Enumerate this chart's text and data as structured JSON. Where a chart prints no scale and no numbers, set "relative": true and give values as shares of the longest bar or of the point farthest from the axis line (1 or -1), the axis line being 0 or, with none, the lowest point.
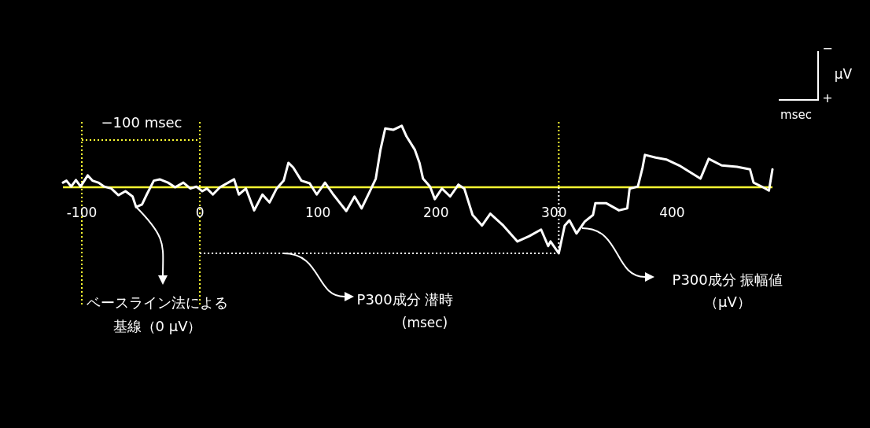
{
  "chart_data": {
    "type": "line",
    "relative": true,
    "xlim": [
      -116,
      485
    ],
    "xticks": [
      -100,
      0,
      100,
      200,
      300,
      400
    ],
    "x": [
      -116,
      -113,
      -109,
      -105,
      -101,
      -95,
      -91,
      -86,
      -81,
      -75,
      -69,
      -63,
      -57,
      -54,
      -49,
      -45,
      -39,
      -34,
      -27,
      -21,
      -14,
      -8,
      -3,
      2,
      6,
      11,
      17,
      24,
      29,
      33,
      39,
      46,
      53,
      59,
      65,
      71,
      75,
      79,
      86,
      93,
      99,
      106,
      113,
      124,
      131,
      137,
      144,
      149,
      153,
      157,
      164,
      171,
      175,
      182,
      186,
      189,
      195,
      199,
      205,
      212,
      219,
      224,
      231,
      239,
      246,
      257,
      269,
      279,
      289,
      295,
      297,
      304,
      309,
      313,
      319,
      326,
      333,
      335,
      344,
      355,
      362,
      364,
      371,
      375,
      377,
      386,
      395,
      406,
      424,
      431,
      442,
      455,
      466,
      469,
      477,
      482,
      485
    ],
    "series": [
      {
        "color": "#ffffff",
        "values": [
          0.07,
          0.1,
          0.01,
          0.11,
          0.01,
          0.18,
          0.1,
          0.07,
          0.01,
          -0.02,
          -0.12,
          -0.06,
          -0.14,
          -0.3,
          -0.26,
          -0.11,
          0.1,
          0.12,
          0.07,
          0.0,
          0.07,
          -0.02,
          0.01,
          -0.06,
          -0.02,
          -0.11,
          0.0,
          0.07,
          0.12,
          -0.11,
          -0.02,
          -0.35,
          -0.11,
          -0.23,
          -0.02,
          0.1,
          0.37,
          0.3,
          0.1,
          0.06,
          -0.11,
          0.07,
          -0.11,
          -0.36,
          -0.14,
          -0.32,
          -0.06,
          0.13,
          0.57,
          0.89,
          0.87,
          0.93,
          0.77,
          0.57,
          0.37,
          0.13,
          0.01,
          -0.18,
          -0.02,
          -0.14,
          0.04,
          -0.02,
          -0.42,
          -0.58,
          -0.4,
          -0.58,
          -0.82,
          -0.74,
          -0.64,
          -0.89,
          -0.82,
          -1,
          -0.58,
          -0.5,
          -0.7,
          -0.52,
          -0.42,
          -0.24,
          -0.24,
          -0.35,
          -0.32,
          -0.02,
          0.01,
          0.3,
          0.49,
          0.45,
          0.42,
          0.33,
          0.13,
          0.43,
          0.33,
          0.31,
          0.27,
          0.07,
          0.0,
          -0.05,
          0.27
        ]
      }
    ],
    "marker": "none",
    "line_style": "solid",
    "ref_lines": [
      {
        "axis": "x",
        "value": -100,
        "color": "#ffff33",
        "line_style": "dotted"
      },
      {
        "axis": "x",
        "value": 0,
        "color": "#ffff33",
        "line_style": "dotted"
      },
      {
        "axis": "x",
        "value": 304,
        "color": "#ffff33",
        "line_style": "dotted"
      }
    ],
    "annotations": [
      "−100 msec",
      "ベースライン法による",
      "基線（0 μV）",
      "P300成分 潜時",
      "(msec)",
      "P300成分 振幅値",
      "（μV）",
      "−",
      "+",
      "μV",
      "msec"
    ]
  }
}
